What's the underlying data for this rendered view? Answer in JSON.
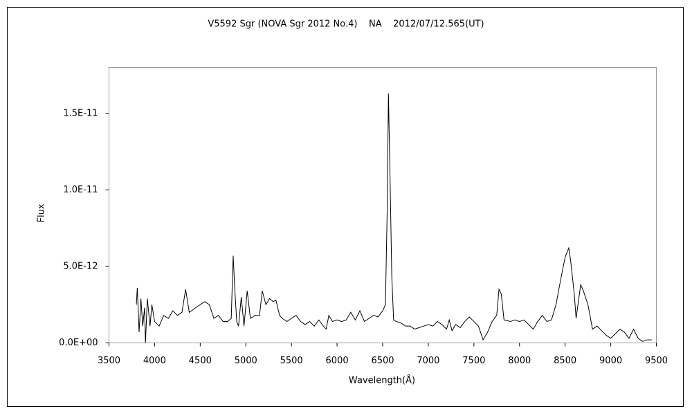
{
  "chart_data": {
    "type": "line",
    "title": "V5592 Sgr (NOVA Sgr 2012 No.4)    NA    2012/07/12.565(UT)",
    "x_label": "Wavelength(Å)",
    "y_label": "Flux",
    "color": "#000000",
    "x": [
      3800,
      3810,
      3830,
      3850,
      3870,
      3890,
      3900,
      3920,
      3950,
      3970,
      4000,
      4050,
      4100,
      4150,
      4200,
      4250,
      4300,
      4340,
      4380,
      4450,
      4500,
      4550,
      4600,
      4650,
      4700,
      4750,
      4800,
      4840,
      4861,
      4880,
      4900,
      4920,
      4950,
      4980,
      5015,
      5050,
      5100,
      5150,
      5180,
      5220,
      5260,
      5300,
      5330,
      5370,
      5400,
      5450,
      5500,
      5550,
      5600,
      5650,
      5700,
      5750,
      5800,
      5850,
      5880,
      5910,
      5950,
      6000,
      6050,
      6100,
      6150,
      6200,
      6250,
      6300,
      6350,
      6400,
      6450,
      6500,
      6530,
      6550,
      6563,
      6580,
      6600,
      6620,
      6650,
      6700,
      6750,
      6800,
      6850,
      6900,
      6950,
      7000,
      7050,
      7100,
      7150,
      7200,
      7230,
      7260,
      7300,
      7350,
      7400,
      7450,
      7500,
      7550,
      7600,
      7650,
      7700,
      7750,
      7775,
      7800,
      7830,
      7900,
      7950,
      8000,
      8050,
      8100,
      8150,
      8200,
      8250,
      8300,
      8350,
      8400,
      8450,
      8500,
      8540,
      8560,
      8600,
      8620,
      8650,
      8670,
      8700,
      8750,
      8800,
      8850,
      8900,
      8950,
      9000,
      9050,
      9100,
      9150,
      9200,
      9250,
      9300,
      9350,
      9400,
      9450
    ],
    "values": [
      2.5e-12,
      3.6e-12,
      7e-13,
      2.9e-12,
      1.1e-12,
      2.3e-12,
      0,
      2.9e-12,
      1.1e-12,
      2.5e-12,
      1.4e-12,
      1.1e-12,
      1.8e-12,
      1.6e-12,
      2.1e-12,
      1.8e-12,
      2e-12,
      3.5e-12,
      2e-12,
      2.3e-12,
      2.5e-12,
      2.7e-12,
      2.5e-12,
      1.6e-12,
      1.8e-12,
      1.4e-12,
      1.4e-12,
      1.6e-12,
      5.7e-12,
      3.4e-12,
      1.4e-12,
      1.1e-12,
      3e-12,
      1.1e-12,
      3.4e-12,
      1.6e-12,
      1.8e-12,
      1.8e-12,
      3.4e-12,
      2.5e-12,
      2.9e-12,
      2.7e-12,
      2.8e-12,
      1.8e-12,
      1.6e-12,
      1.4e-12,
      1.6e-12,
      1.8e-12,
      1.4e-12,
      1.2e-12,
      1.4e-12,
      1.1e-12,
      1.5e-12,
      1.1e-12,
      9e-13,
      1.8e-12,
      1.4e-12,
      1.5e-12,
      1.4e-12,
      1.5e-12,
      2e-12,
      1.5e-12,
      2.1e-12,
      1.4e-12,
      1.6e-12,
      1.8e-12,
      1.7e-12,
      2.1e-12,
      2.5e-12,
      8.8e-12,
      1.63e-11,
      1.11e-11,
      4.3e-12,
      1.5e-12,
      1.4e-12,
      1.3e-12,
      1.1e-12,
      1.1e-12,
      9e-13,
      1e-12,
      1.1e-12,
      1.2e-12,
      1.1e-12,
      1.4e-12,
      1.2e-12,
      9e-13,
      1.5e-12,
      8e-13,
      1.2e-12,
      1e-12,
      1.4e-12,
      1.7e-12,
      1.4e-12,
      1.1e-12,
      2e-13,
      7e-13,
      1.4e-12,
      1.8e-12,
      3.5e-12,
      3.2e-12,
      1.5e-12,
      1.4e-12,
      1.5e-12,
      1.4e-12,
      1.5e-12,
      1.2e-12,
      9e-13,
      1.4e-12,
      1.8e-12,
      1.4e-12,
      1.5e-12,
      2.5e-12,
      4.1e-12,
      5.6e-12,
      6.2e-12,
      5.4e-12,
      3.2e-12,
      1.6e-12,
      2.9e-12,
      3.8e-12,
      3.4e-12,
      2.5e-12,
      9e-13,
      1.1e-12,
      8e-13,
      5e-13,
      3e-13,
      6e-13,
      9e-13,
      7e-13,
      3e-13,
      9e-13,
      3e-13,
      1e-13,
      2e-13,
      2e-13
    ],
    "xlim": [
      3500,
      9500
    ],
    "xticks": [
      3500,
      4000,
      4500,
      5000,
      5500,
      6000,
      6500,
      7000,
      7500,
      8000,
      8500,
      9000,
      9500
    ],
    "ylim": [
      0,
      1.8e-11
    ],
    "yticks": [
      {
        "value": 0,
        "label": "0.0E+00"
      },
      {
        "value": 5e-12,
        "label": "5.0E-12"
      },
      {
        "value": 1e-11,
        "label": "1.0E-11"
      },
      {
        "value": 1.5e-11,
        "label": "1.5E-11"
      }
    ],
    "grid": false
  }
}
